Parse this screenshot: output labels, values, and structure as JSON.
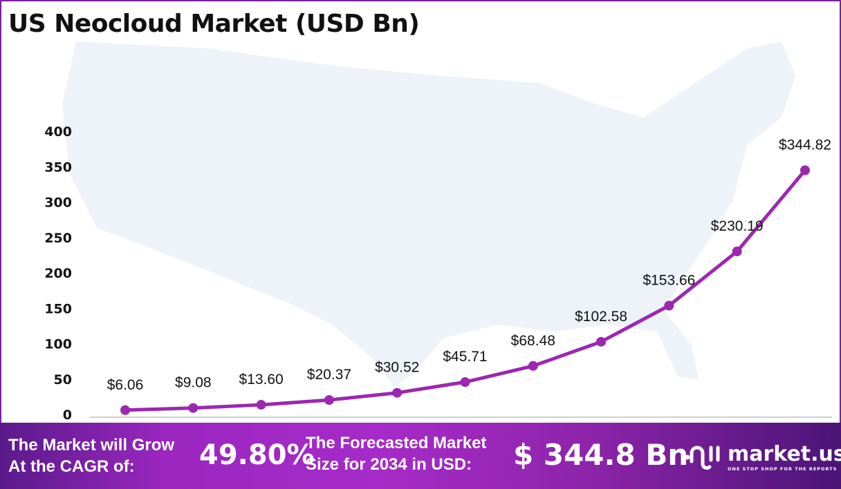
{
  "title": "US Neocloud Market (USD Bn)",
  "chart_data": {
    "type": "line",
    "title": "US Neocloud Market (USD Bn)",
    "ylim": [
      0,
      400
    ],
    "yticks": [
      0,
      50,
      100,
      150,
      200,
      250,
      300,
      350,
      400
    ],
    "values": [
      6.06,
      9.08,
      13.6,
      20.37,
      30.52,
      45.71,
      68.48,
      102.58,
      153.66,
      230.19,
      344.82
    ],
    "data_labels": [
      "$6.06",
      "$9.08",
      "$13.60",
      "$20.37",
      "$30.52",
      "$45.71",
      "$68.48",
      "$102.58",
      "$153.66",
      "$230.19",
      "$344.82"
    ],
    "grid": false,
    "line_color": "#9c27b0"
  },
  "banner": {
    "cagr_text_line1": "The Market will Grow",
    "cagr_text_line2": "At the CAGR of:",
    "cagr_value": "49.80%",
    "forecast_text_line1": "The Forecasted Market",
    "forecast_text_line2": "Size for 2034 in USD:",
    "forecast_value": "$ 344.8 Bn"
  },
  "logo": {
    "name": "market.us",
    "tagline": "ONE STOP SHOP FOR THE REPORTS"
  }
}
